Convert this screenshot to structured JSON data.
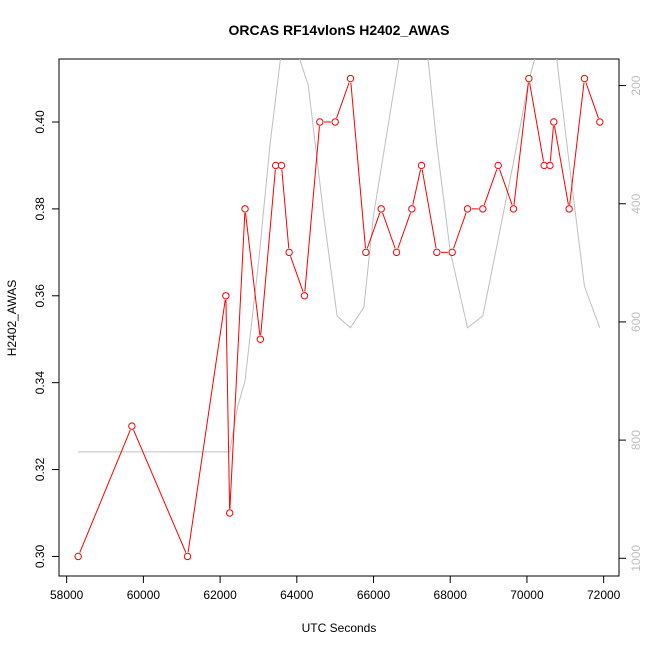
{
  "chart_data": {
    "type": "line",
    "title": "ORCAS RF14vlonS H2402_AWAS",
    "xlabel": "UTC Seconds",
    "ylabel": "H2402_AWAS",
    "xlim": [
      57800,
      72400
    ],
    "ylim": [
      0.2955,
      0.4145
    ],
    "y2lim": [
      1030,
      155
    ],
    "y2_reversed": true,
    "x_ticks": [
      58000,
      60000,
      62000,
      64000,
      66000,
      68000,
      70000,
      72000
    ],
    "y_ticks": [
      0.3,
      0.32,
      0.34,
      0.36,
      0.38,
      0.4
    ],
    "y2_ticks": [
      200,
      400,
      600,
      800,
      1000
    ],
    "grid": false,
    "series": [
      {
        "color": "#ff0000",
        "axis": "left",
        "points": [
          [
            58300,
            0.3
          ],
          [
            59700,
            0.33
          ],
          [
            61150,
            0.3
          ],
          [
            62150,
            0.36
          ],
          [
            62250,
            0.31
          ],
          [
            62650,
            0.38
          ],
          [
            63050,
            0.35
          ],
          [
            63450,
            0.39
          ],
          [
            63600,
            0.39
          ],
          [
            63800,
            0.37
          ],
          [
            64200,
            0.36
          ],
          [
            64600,
            0.4
          ],
          [
            65000,
            0.4
          ],
          [
            65400,
            0.41
          ],
          [
            65800,
            0.37
          ],
          [
            66200,
            0.38
          ],
          [
            66600,
            0.37
          ],
          [
            67000,
            0.38
          ],
          [
            67250,
            0.39
          ],
          [
            67650,
            0.37
          ],
          [
            68050,
            0.37
          ],
          [
            68450,
            0.38
          ],
          [
            68850,
            0.38
          ],
          [
            69250,
            0.39
          ],
          [
            69650,
            0.38
          ],
          [
            70050,
            0.41
          ],
          [
            70450,
            0.39
          ],
          [
            70600,
            0.39
          ],
          [
            70700,
            0.4
          ],
          [
            71100,
            0.38
          ],
          [
            71500,
            0.41
          ],
          [
            71900,
            0.4
          ]
        ]
      },
      {
        "color": "#bfbfbf",
        "axis": "right",
        "points": [
          [
            58300,
            820
          ],
          [
            62250,
            820
          ],
          [
            62450,
            745
          ],
          [
            62650,
            700
          ],
          [
            63000,
            500
          ],
          [
            63300,
            300
          ],
          [
            63600,
            140
          ],
          [
            64000,
            140
          ],
          [
            64300,
            200
          ],
          [
            64700,
            420
          ],
          [
            65050,
            590
          ],
          [
            65400,
            610
          ],
          [
            65750,
            575
          ],
          [
            66000,
            420
          ],
          [
            66300,
            300
          ],
          [
            66700,
            140
          ],
          [
            67400,
            140
          ],
          [
            67650,
            300
          ],
          [
            68000,
            480
          ],
          [
            68450,
            610
          ],
          [
            68850,
            590
          ],
          [
            69250,
            460
          ],
          [
            69650,
            330
          ],
          [
            70050,
            190
          ],
          [
            70400,
            110
          ],
          [
            70750,
            140
          ],
          [
            71100,
            330
          ],
          [
            71500,
            540
          ],
          [
            71900,
            610
          ]
        ]
      }
    ]
  }
}
